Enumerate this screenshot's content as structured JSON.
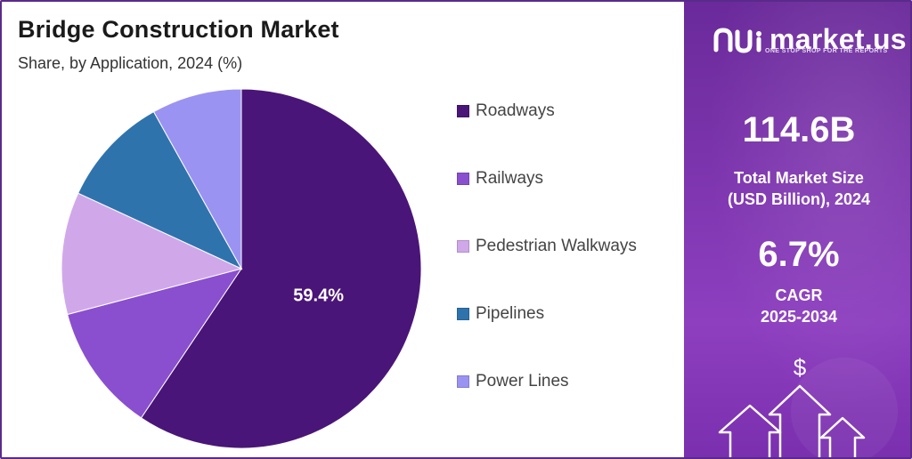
{
  "title": "Bridge Construction Market",
  "subtitle": "Share, by Application, 2024 (%)",
  "chart_data": {
    "type": "pie",
    "title": "Bridge Construction Market",
    "subtitle": "Share, by Application, 2024 (%)",
    "categories": [
      "Roadways",
      "Railways",
      "Pedestrian Walkways",
      "Pipelines",
      "Power Lines"
    ],
    "values": [
      59.4,
      11.5,
      11.0,
      10.0,
      8.1
    ],
    "colors": [
      "#4a1578",
      "#8a4fcf",
      "#d0a8ea",
      "#2f73ad",
      "#9b93f2"
    ],
    "data_labels": [
      "59.4%",
      "",
      "",
      "",
      ""
    ],
    "legend_position": "right"
  },
  "legend": [
    {
      "label": "Roadways",
      "color": "#4a1578"
    },
    {
      "label": "Railways",
      "color": "#8a4fcf"
    },
    {
      "label": "Pedestrian Walkways",
      "color": "#d0a8ea"
    },
    {
      "label": "Pipelines",
      "color": "#2f73ad"
    },
    {
      "label": "Power Lines",
      "color": "#9b93f2"
    }
  ],
  "brand": {
    "name": "market.us",
    "tagline": "ONE STOP SHOP FOR THE REPORTS",
    "logo_icon": "market-us-logo-icon"
  },
  "stats": {
    "market_size_value": "114.6B",
    "market_size_label_1": "Total Market Size",
    "market_size_label_2": "(USD Billion), 2024",
    "cagr_value": "6.7%",
    "cagr_label_1": "CAGR",
    "cagr_label_2": "2025-2034"
  },
  "decoration": {
    "currency_symbol": "$",
    "icon": "growth-arrows-icon"
  }
}
